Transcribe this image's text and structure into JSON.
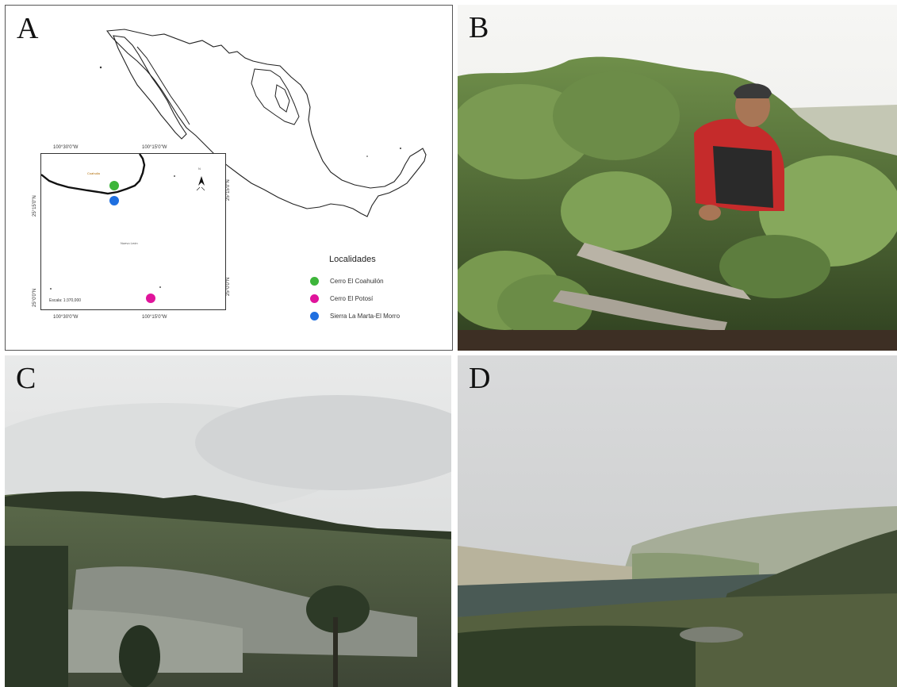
{
  "panels": {
    "a": {
      "letter": "A"
    },
    "b": {
      "letter": "B"
    },
    "c": {
      "letter": "C"
    },
    "d": {
      "letter": "D"
    }
  },
  "map": {
    "ticks_top": [
      "100°30'0\"W",
      "100°15'0\"W"
    ],
    "ticks_bottom": [
      "100°30'0\"W",
      "100°15'0\"W"
    ],
    "ticks_left": [
      "25°15'0\"N",
      "25°0'0\"N"
    ],
    "ticks_right": [
      "25°15'0\"N",
      "25°0'0\"N"
    ],
    "north_label": "N",
    "place_coahuila": "Coahuila",
    "place_nuevo_leon": "Nuevo León",
    "scale": "Escala: 1:370,000"
  },
  "legend": {
    "title": "Localidades",
    "items": [
      {
        "label": "Cerro El Coahuilón",
        "color": "#3db53a"
      },
      {
        "label": "Cerro El Potosí",
        "color": "#e0149b"
      },
      {
        "label": "Sierra La Marta-El Morro",
        "color": "#1f6fe0"
      }
    ]
  }
}
